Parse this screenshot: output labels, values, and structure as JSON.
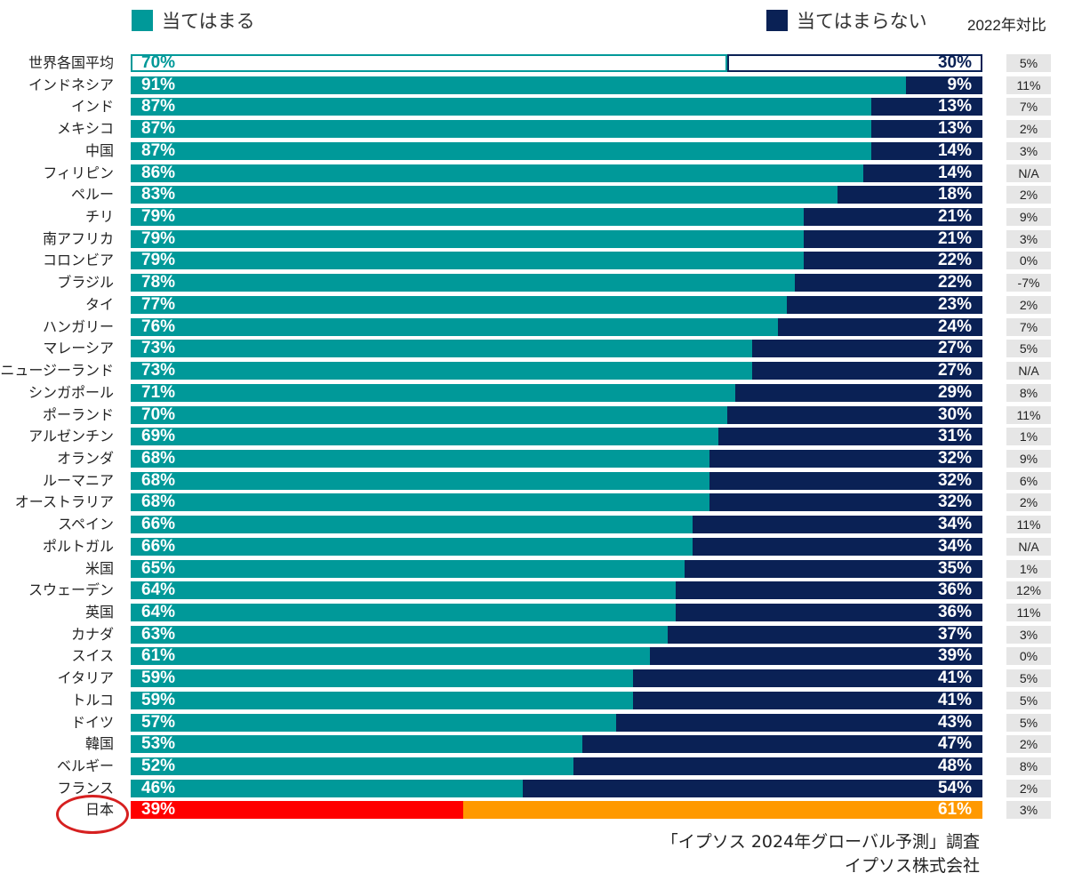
{
  "legend": {
    "yes": "当てはまる",
    "no": "当てはまらない",
    "yoy_header": "2022年対比"
  },
  "colors": {
    "yes": "#009999",
    "no": "#0a2155",
    "japan_yes": "#ff0000",
    "japan_no": "#ff9900",
    "yoy_bg": "#e6e6e6"
  },
  "source": {
    "line1": "「イプソス 2024年グローバル予測」調査",
    "line2": "イプソス株式会社"
  },
  "chart_data": {
    "type": "bar",
    "orientation": "horizontal",
    "stacked": true,
    "xlim": [
      0,
      100
    ],
    "series": [
      {
        "name": "当てはまる"
      },
      {
        "name": "当てはまらない"
      }
    ],
    "rows": [
      {
        "country": "世界各国平均",
        "yes": 70,
        "no": 30,
        "yoy": "5%"
      },
      {
        "country": "インドネシア",
        "yes": 91,
        "no": 9,
        "yoy": "11%"
      },
      {
        "country": "インド",
        "yes": 87,
        "no": 13,
        "yoy": "7%"
      },
      {
        "country": "メキシコ",
        "yes": 87,
        "no": 13,
        "yoy": "2%"
      },
      {
        "country": "中国",
        "yes": 87,
        "no": 14,
        "yoy": "3%"
      },
      {
        "country": "フィリピン",
        "yes": 86,
        "no": 14,
        "yoy": "N/A"
      },
      {
        "country": "ペルー",
        "yes": 83,
        "no": 18,
        "yoy": "2%"
      },
      {
        "country": "チリ",
        "yes": 79,
        "no": 21,
        "yoy": "9%"
      },
      {
        "country": "南アフリカ",
        "yes": 79,
        "no": 21,
        "yoy": "3%"
      },
      {
        "country": "コロンビア",
        "yes": 79,
        "no": 22,
        "yoy": "0%"
      },
      {
        "country": "ブラジル",
        "yes": 78,
        "no": 22,
        "yoy": "-7%"
      },
      {
        "country": "タイ",
        "yes": 77,
        "no": 23,
        "yoy": "2%"
      },
      {
        "country": "ハンガリー",
        "yes": 76,
        "no": 24,
        "yoy": "7%"
      },
      {
        "country": "マレーシア",
        "yes": 73,
        "no": 27,
        "yoy": "5%"
      },
      {
        "country": "ニュージーランド",
        "yes": 73,
        "no": 27,
        "yoy": "N/A"
      },
      {
        "country": "シンガポール",
        "yes": 71,
        "no": 29,
        "yoy": "8%"
      },
      {
        "country": "ポーランド",
        "yes": 70,
        "no": 30,
        "yoy": "11%"
      },
      {
        "country": "アルゼンチン",
        "yes": 69,
        "no": 31,
        "yoy": "1%"
      },
      {
        "country": "オランダ",
        "yes": 68,
        "no": 32,
        "yoy": "9%"
      },
      {
        "country": "ルーマニア",
        "yes": 68,
        "no": 32,
        "yoy": "6%"
      },
      {
        "country": "オーストラリア",
        "yes": 68,
        "no": 32,
        "yoy": "2%"
      },
      {
        "country": "スペイン",
        "yes": 66,
        "no": 34,
        "yoy": "11%"
      },
      {
        "country": "ポルトガル",
        "yes": 66,
        "no": 34,
        "yoy": "N/A"
      },
      {
        "country": "米国",
        "yes": 65,
        "no": 35,
        "yoy": "1%"
      },
      {
        "country": "スウェーデン",
        "yes": 64,
        "no": 36,
        "yoy": "12%"
      },
      {
        "country": "英国",
        "yes": 64,
        "no": 36,
        "yoy": "11%"
      },
      {
        "country": "カナダ",
        "yes": 63,
        "no": 37,
        "yoy": "3%"
      },
      {
        "country": "スイス",
        "yes": 61,
        "no": 39,
        "yoy": "0%"
      },
      {
        "country": "イタリア",
        "yes": 59,
        "no": 41,
        "yoy": "5%"
      },
      {
        "country": "トルコ",
        "yes": 59,
        "no": 41,
        "yoy": "5%"
      },
      {
        "country": "ドイツ",
        "yes": 57,
        "no": 43,
        "yoy": "5%"
      },
      {
        "country": "韓国",
        "yes": 53,
        "no": 47,
        "yoy": "2%"
      },
      {
        "country": "ベルギー",
        "yes": 52,
        "no": 48,
        "yoy": "8%"
      },
      {
        "country": "フランス",
        "yes": 46,
        "no": 54,
        "yoy": "2%"
      },
      {
        "country": "日本",
        "yes": 39,
        "no": 61,
        "yoy": "3%"
      }
    ]
  }
}
